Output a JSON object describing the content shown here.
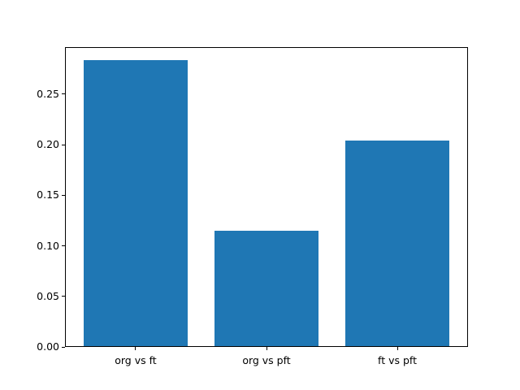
{
  "chart_data": {
    "type": "bar",
    "categories": [
      "org vs ft",
      "org vs pft",
      "ft vs pft"
    ],
    "values": [
      0.283,
      0.114,
      0.203
    ],
    "title": "",
    "xlabel": "",
    "ylabel": "",
    "ylim": [
      0,
      0.2966
    ],
    "xlim": [
      -0.54,
      2.54
    ],
    "bar_width": 0.8,
    "yticks": [
      0.0,
      0.05,
      0.1,
      0.15,
      0.2,
      0.25
    ],
    "ytick_labels": [
      "0.00",
      "0.05",
      "0.10",
      "0.15",
      "0.20",
      "0.25"
    ],
    "bar_color": "#1f77b4",
    "grid": false,
    "legend": null
  },
  "colors": {
    "bar": "#1f77b4",
    "axis": "#000000",
    "background": "#ffffff"
  }
}
